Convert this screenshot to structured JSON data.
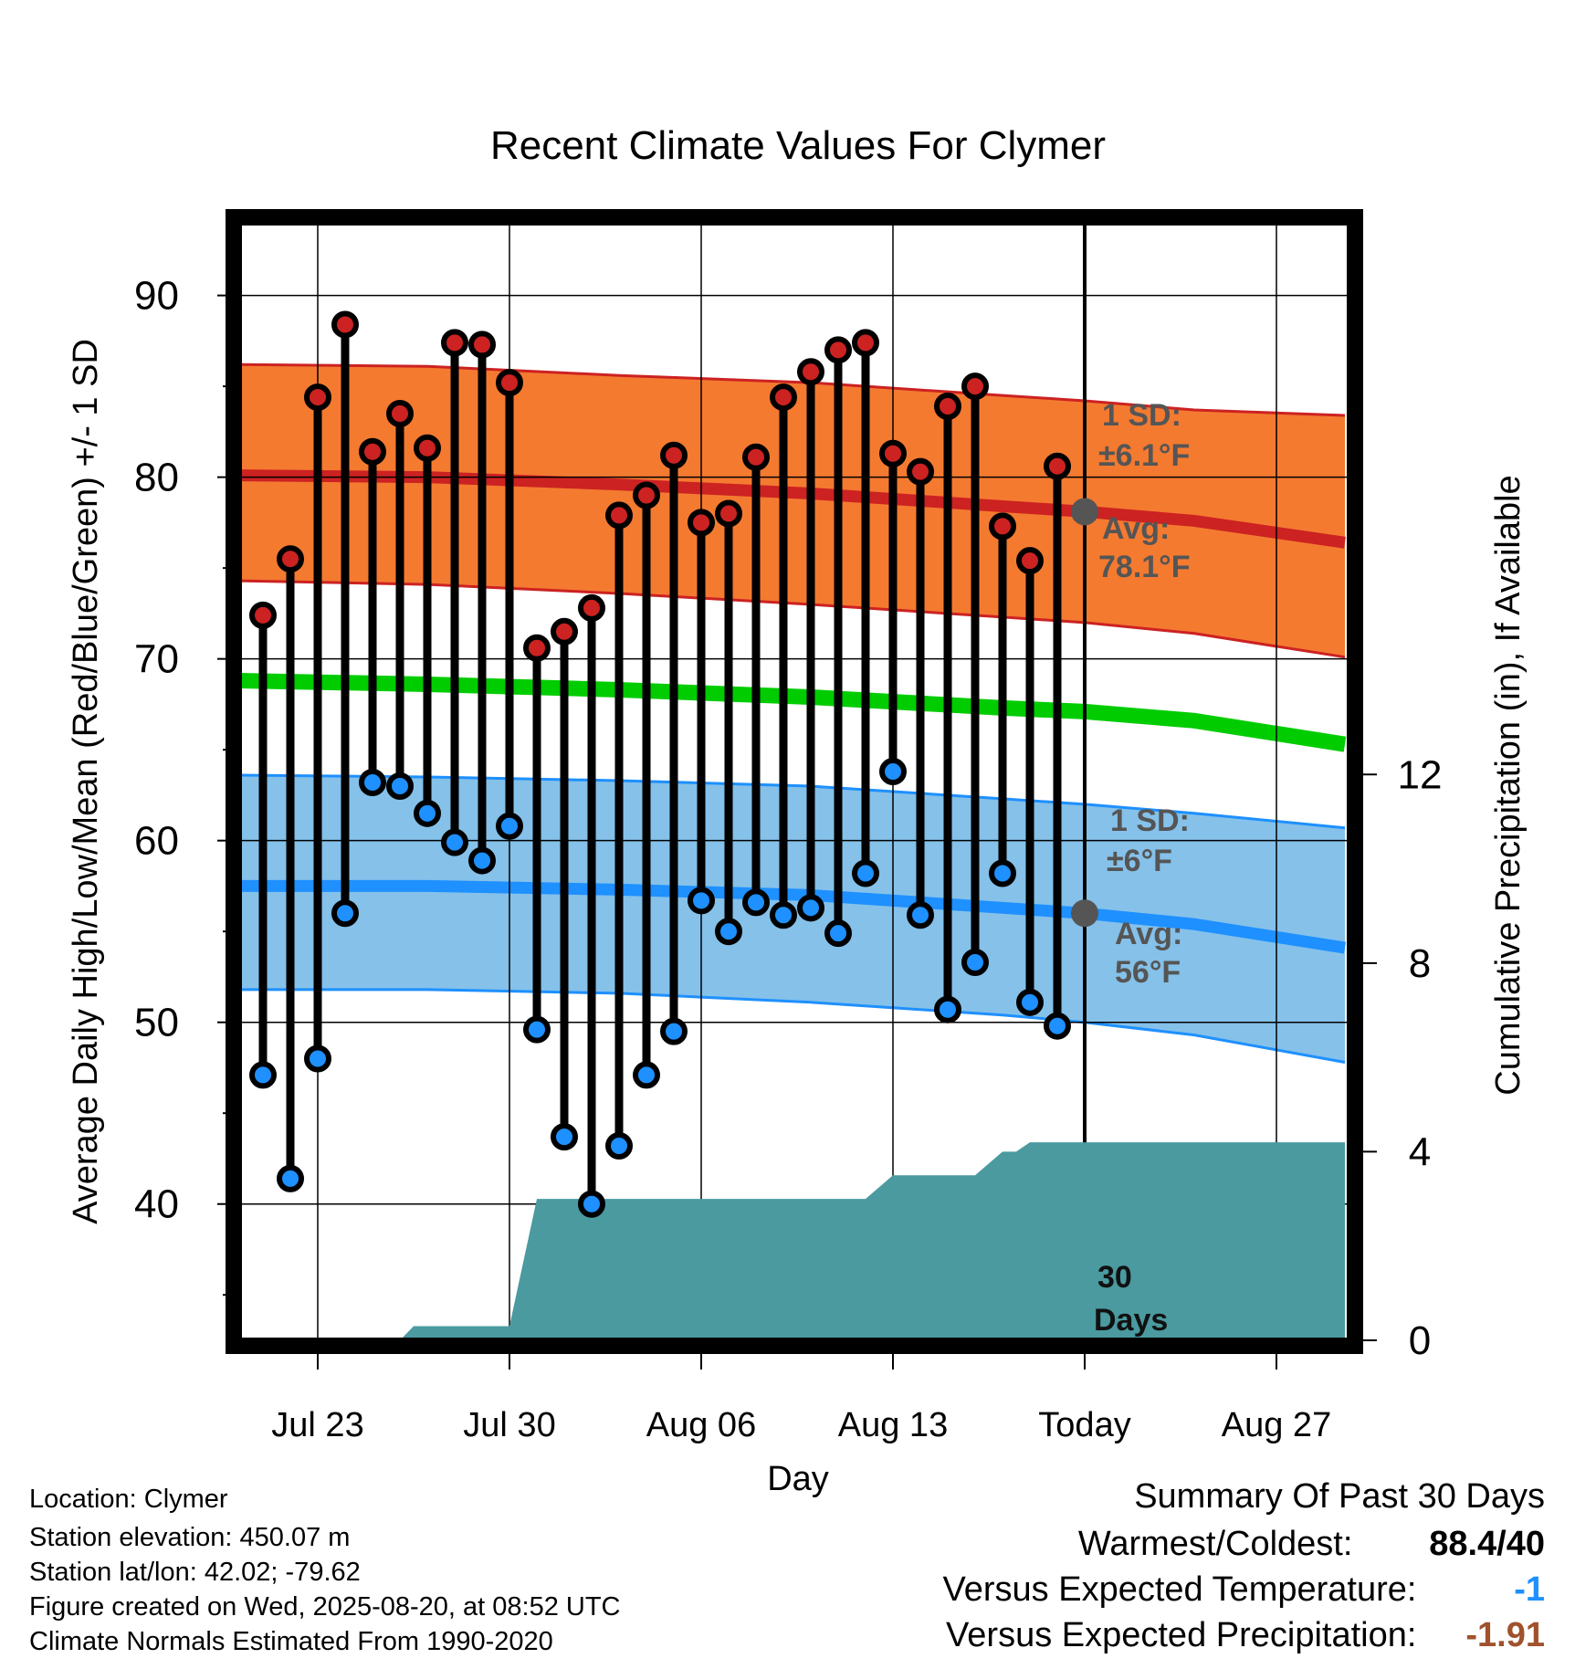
{
  "chart_data": {
    "type": "line",
    "title": "Recent Climate Values For Clymer",
    "xlabel": "Day",
    "ylabel": "Average Daily High/Low/Mean (Red/Blue/Green) +/- 1 SD",
    "y2label": "Cumulative Precipitation (in), If Available",
    "ylim": [
      32.5,
      94
    ],
    "y2lim": [
      0,
      23.7
    ],
    "yticks": [
      40,
      50,
      60,
      70,
      80,
      90
    ],
    "y2ticks": [
      0,
      4,
      8,
      12
    ],
    "xlim": [
      20,
      51
    ],
    "x_ticks": [
      {
        "day": 23,
        "label": "Jul 23"
      },
      {
        "day": 30,
        "label": "Jul 30"
      },
      {
        "day": 37,
        "label": "Aug 06"
      },
      {
        "day": 44,
        "label": "Aug 13"
      },
      {
        "day": 51,
        "label": "Today"
      },
      {
        "day": 58,
        "label": "Aug 27"
      }
    ],
    "today_day": 51,
    "grid": true,
    "days": [
      21,
      22,
      23,
      24,
      25,
      26,
      27,
      28,
      29,
      30,
      31,
      32,
      33,
      34,
      35,
      36,
      37,
      38,
      39,
      40,
      41,
      42,
      43,
      44,
      45,
      46,
      47,
      48,
      49,
      50
    ],
    "series": [
      {
        "name": "High",
        "color": "#cc2222",
        "values": [
          72.4,
          75.5,
          84.4,
          88.4,
          81.4,
          83.5,
          81.6,
          87.4,
          87.3,
          85.2,
          70.6,
          71.5,
          72.8,
          77.9,
          79.0,
          81.2,
          77.5,
          78.0,
          81.1,
          84.4,
          85.8,
          87.0,
          87.4,
          81.3,
          80.3,
          83.9,
          85.0,
          77.3,
          75.4,
          80.6
        ]
      },
      {
        "name": "Low",
        "color": "#1e90ff",
        "values": [
          47.1,
          41.4,
          48.0,
          56.0,
          63.2,
          63.0,
          61.5,
          59.9,
          58.9,
          60.8,
          49.6,
          43.7,
          40.0,
          43.2,
          47.1,
          49.5,
          56.7,
          55.0,
          56.6,
          55.9,
          56.3,
          54.9,
          58.2,
          63.8,
          55.9,
          50.7,
          53.3,
          58.2,
          51.1,
          49.8
        ]
      }
    ],
    "normals": {
      "days": [
        20,
        27,
        34,
        41,
        48,
        51,
        55,
        60.5
      ],
      "high_avg": [
        80.1,
        80.0,
        79.6,
        79.1,
        78.4,
        78.1,
        77.6,
        76.4
      ],
      "high_upper": [
        86.2,
        86.1,
        85.6,
        85.2,
        84.5,
        84.2,
        83.7,
        83.4
      ],
      "high_lower": [
        74.3,
        74.1,
        73.6,
        73.0,
        72.3,
        72.0,
        71.4,
        70.1
      ],
      "mean": [
        68.8,
        68.6,
        68.3,
        67.9,
        67.3,
        67.1,
        66.6,
        65.3
      ],
      "low_avg": [
        57.5,
        57.5,
        57.3,
        57.0,
        56.3,
        56.0,
        55.4,
        54.1
      ],
      "low_upper": [
        63.6,
        63.5,
        63.3,
        63.0,
        62.3,
        62.0,
        61.5,
        60.7
      ],
      "low_lower": [
        51.8,
        51.8,
        51.6,
        51.1,
        50.4,
        50.0,
        49.3,
        47.8
      ]
    },
    "precip": {
      "points": [
        [
          20,
          0
        ],
        [
          26,
          0
        ],
        [
          26.5,
          0.3
        ],
        [
          29.5,
          0.3
        ],
        [
          30,
          0.3
        ],
        [
          31,
          3
        ],
        [
          43,
          3
        ],
        [
          44,
          3.5
        ],
        [
          47,
          3.5
        ],
        [
          48,
          4
        ],
        [
          48.5,
          4
        ],
        [
          49,
          4.2
        ],
        [
          60.5,
          4.2
        ]
      ]
    },
    "annotations": {
      "high_sd": "1 SD:",
      "high_sd_value": "±6.1°F",
      "high_avg_label": "Avg:",
      "high_avg_value": "78.1°F",
      "low_sd": "1 SD:",
      "low_sd_value": "±6°F",
      "low_avg_label": "Avg:",
      "low_avg_value": "56°F",
      "period_num": "30",
      "period_unit": "Days"
    }
  },
  "info": {
    "location": "Location: Clymer",
    "elevation": "Station elevation: 450.07 m",
    "latlon": "Station lat/lon: 42.02; -79.62",
    "created": "Figure created on Wed, 2025-08-20, at 08:52 UTC",
    "normals": "Climate Normals Estimated From 1990-2020"
  },
  "summary": {
    "title": "Summary Of Past 30 Days",
    "warmest_label": "Warmest/Coldest:",
    "warmest_value": "88.4/40",
    "temp_label": "Versus Expected Temperature:",
    "temp_value": "-1",
    "temp_color": "#1e90ff",
    "precip_label": "Versus Expected Precipitation:",
    "precip_value": "-1.91",
    "precip_color": "#a0522d"
  }
}
